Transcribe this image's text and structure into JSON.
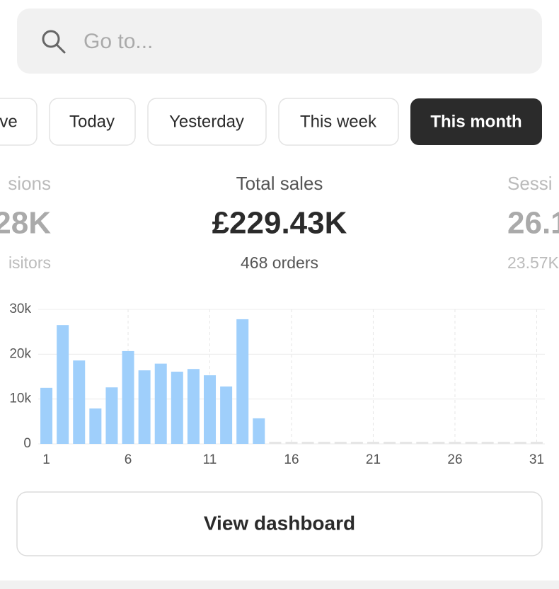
{
  "search": {
    "placeholder": "Go to..."
  },
  "tabs": [
    "ve",
    "Today",
    "Yesterday",
    "This week",
    "This month"
  ],
  "metrics": [
    {
      "label": "sions",
      "value": "28K",
      "sub": "isitors"
    },
    {
      "label": "Total sales",
      "value": "£229.43K",
      "sub": "468 orders"
    },
    {
      "label": "Sessi",
      "value": "26.1",
      "sub": "23.57K"
    }
  ],
  "chart_data": {
    "type": "bar",
    "categories": [
      "1",
      null,
      null,
      null,
      null,
      "6",
      null,
      null,
      null,
      null,
      "11",
      null,
      null,
      null,
      null,
      "16",
      null,
      null,
      null,
      null,
      "21",
      null,
      null,
      null,
      null,
      "26",
      null,
      null,
      null,
      null,
      "31"
    ],
    "values": [
      12500,
      26500,
      18600,
      7900,
      12600,
      20700,
      16400,
      17900,
      16100,
      16700,
      15300,
      12800,
      27800,
      5700,
      0,
      0,
      0,
      0,
      0,
      0,
      0,
      0,
      0,
      0,
      0,
      0,
      0,
      0,
      0,
      0,
      0
    ],
    "color": "#9fcffb",
    "zero_color": "#e6e6e6",
    "ylim": [
      0,
      30000
    ],
    "yticks": [
      {
        "value": 0,
        "label": "0"
      },
      {
        "value": 10000,
        "label": "10k"
      },
      {
        "value": 20000,
        "label": "20k"
      },
      {
        "value": 30000,
        "label": "30k"
      }
    ],
    "grid": true
  },
  "button": "View dashboard"
}
